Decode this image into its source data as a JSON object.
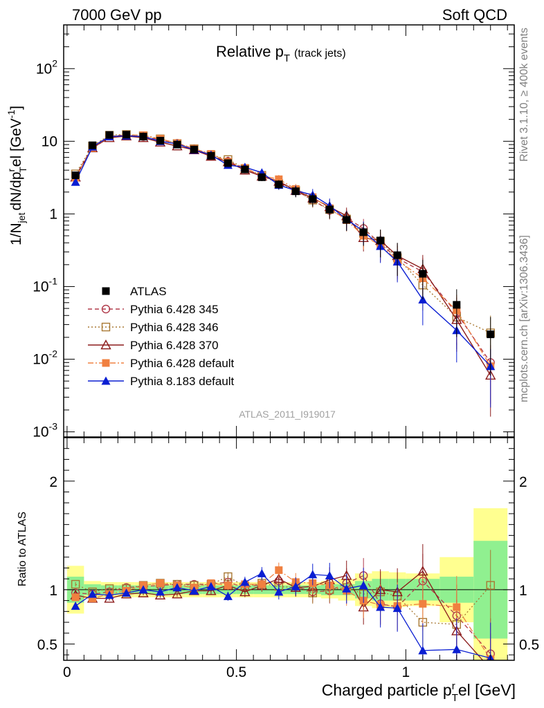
{
  "header": {
    "left": "7000 GeV pp",
    "right": "Soft QCD",
    "side_top": "Rivet 3.1.10, ≥ 400k events",
    "side_bottom": "mcplots.cern.ch [arXiv:1306.3436]"
  },
  "colors": {
    "ATLAS": "#000000",
    "Pythia 6.428 345": "#b03a4a",
    "Pythia 6.428 346": "#a87832",
    "Pythia 6.428 370": "#8b1a1a",
    "Pythia 6.428 default": "#f08040",
    "Pythia 8.183 default": "#0a1ed2",
    "band_inner": "#90f090",
    "band_outer": "#ffff90"
  },
  "chart_data": [
    {
      "panel": "main",
      "type": "scatter",
      "title": "Relative p",
      "title_sub": "T",
      "title_suffix": "(track jets)",
      "ylabel": "1/N",
      "ylabel_sub": "jet",
      "ylabel_mid": "dN/dp",
      "ylabel_sup": "r",
      "ylabel_sub2": "T",
      "ylabel_end": "el [GeV",
      "ylabel_sup2": "-1",
      "ylabel_close": "]",
      "yscale": "log",
      "xlim": [
        -0.01,
        1.32
      ],
      "ylim": [
        0.00085,
        400
      ],
      "yticks": [
        {
          "v": 0.001,
          "l": "10",
          "e": "-3"
        },
        {
          "v": 0.01,
          "l": "10",
          "e": "-2"
        },
        {
          "v": 0.1,
          "l": "10",
          "e": "-1"
        },
        {
          "v": 1,
          "l": "1",
          "e": ""
        },
        {
          "v": 10,
          "l": "10",
          "e": ""
        },
        {
          "v": 100,
          "l": "10",
          "e": "2"
        }
      ],
      "watermark": "ATLAS_2011_I919017",
      "legend_position": "lower-left",
      "x": [
        0.025,
        0.075,
        0.125,
        0.175,
        0.225,
        0.275,
        0.325,
        0.375,
        0.425,
        0.475,
        0.525,
        0.575,
        0.625,
        0.675,
        0.725,
        0.775,
        0.825,
        0.875,
        0.925,
        0.975,
        1.05,
        1.15,
        1.25
      ],
      "series": [
        {
          "name": "ATLAS",
          "marker": "square-filled",
          "line": "none",
          "values": [
            3.4,
            8.8,
            12.2,
            12.3,
            11.6,
            10.2,
            9.0,
            7.7,
            6.3,
            5.0,
            4.1,
            3.2,
            2.55,
            2.05,
            1.6,
            1.15,
            0.83,
            0.56,
            0.43,
            0.27,
            0.15,
            0.056,
            0.022
          ]
        },
        {
          "name": "Pythia 6.428 345",
          "marker": "circle-open",
          "line": "dashed",
          "values": [
            3.3,
            8.4,
            11.8,
            12.2,
            11.6,
            10.5,
            9.4,
            7.9,
            6.5,
            5.3,
            4.2,
            3.35,
            2.75,
            2.1,
            1.55,
            1.12,
            0.88,
            0.63,
            0.39,
            0.245,
            0.16,
            0.043,
            0.009
          ]
        },
        {
          "name": "Pythia 6.428 346",
          "marker": "square-open",
          "line": "dotted",
          "values": [
            3.55,
            8.6,
            12.1,
            12.4,
            11.9,
            10.8,
            9.3,
            7.9,
            6.5,
            5.6,
            4.2,
            3.4,
            2.6,
            2.1,
            1.55,
            1.15,
            0.85,
            0.54,
            0.42,
            0.25,
            0.105,
            0.038,
            0.023
          ]
        },
        {
          "name": "Pythia 6.428 370",
          "marker": "triangle-open",
          "line": "solid",
          "values": [
            3.2,
            8.1,
            11.2,
            11.8,
            11.2,
            9.7,
            8.6,
            7.6,
            6.2,
            5.2,
            4.0,
            3.3,
            2.8,
            2.1,
            1.65,
            1.25,
            0.94,
            0.47,
            0.43,
            0.265,
            0.175,
            0.035,
            0.006
          ]
        },
        {
          "name": "Pythia 6.428 default",
          "marker": "square-filled",
          "line": "dashdot",
          "values": [
            3.15,
            8.1,
            11.7,
            12.2,
            12.1,
            10.8,
            9.4,
            7.9,
            6.7,
            5.2,
            4.3,
            3.35,
            3.0,
            2.2,
            1.7,
            1.2,
            0.82,
            0.5,
            0.37,
            0.23,
            0.13,
            0.047,
            0.008
          ]
        },
        {
          "name": "Pythia 8.183 default",
          "marker": "triangle-filled",
          "line": "solid",
          "values": [
            2.75,
            8.4,
            11.6,
            11.9,
            11.6,
            10.0,
            9.2,
            7.6,
            6.5,
            4.7,
            4.4,
            3.7,
            2.5,
            2.1,
            1.82,
            1.3,
            0.84,
            0.58,
            0.36,
            0.22,
            0.066,
            0.025,
            0.008
          ]
        }
      ]
    },
    {
      "panel": "ratio",
      "type": "scatter",
      "xlabel": "Charged particle p",
      "xlabel_sub": "T",
      "xlabel_sup": "r",
      "xlabel_suffix": "el [GeV]",
      "ylabel": "Ratio to ATLAS",
      "xlim": [
        -0.01,
        1.32
      ],
      "ylim": [
        0.35,
        2.4
      ],
      "xticks": [
        {
          "v": 0,
          "l": "0"
        },
        {
          "v": 0.5,
          "l": "0.5"
        },
        {
          "v": 1,
          "l": "1"
        }
      ],
      "yticks": [
        {
          "v": 0.5,
          "l": "0.5"
        },
        {
          "v": 1,
          "l": "1"
        },
        {
          "v": 2,
          "l": "2"
        }
      ],
      "bin_edges": [
        0,
        0.05,
        0.1,
        0.15,
        0.2,
        0.25,
        0.3,
        0.35,
        0.4,
        0.45,
        0.5,
        0.55,
        0.6,
        0.65,
        0.7,
        0.75,
        0.8,
        0.85,
        0.9,
        0.95,
        1.0,
        1.1,
        1.2,
        1.3
      ],
      "band_inner": [
        0.12,
        0.05,
        0.04,
        0.04,
        0.04,
        0.04,
        0.04,
        0.04,
        0.04,
        0.04,
        0.04,
        0.04,
        0.04,
        0.04,
        0.04,
        0.05,
        0.05,
        0.08,
        0.1,
        0.1,
        0.1,
        0.12,
        0.45
      ],
      "band_outer": [
        0.22,
        0.08,
        0.07,
        0.07,
        0.07,
        0.07,
        0.07,
        0.07,
        0.07,
        0.07,
        0.07,
        0.07,
        0.07,
        0.07,
        0.07,
        0.08,
        0.1,
        0.15,
        0.17,
        0.16,
        0.15,
        0.3,
        0.75
      ],
      "series": [
        {
          "name": "Pythia 6.428 345",
          "values": [
            0.97,
            0.96,
            0.98,
            1.02,
            1.03,
            1.04,
            1.05,
            1.05,
            1.05,
            1.07,
            1.02,
            1.05,
            1.08,
            1.03,
            0.98,
            0.99,
            1.06,
            1.13,
            0.87,
            0.84,
            1.08,
            0.76,
            0.41
          ]
        },
        {
          "name": "Pythia 6.428 346",
          "values": [
            1.05,
            0.98,
            1.01,
            1.01,
            1.04,
            1.06,
            1.05,
            1.04,
            1.05,
            1.12,
            1.03,
            1.06,
            1.03,
            1.02,
            0.97,
            1.0,
            1.02,
            0.96,
            0.98,
            0.94,
            0.7,
            0.68,
            1.04
          ]
        },
        {
          "name": "Pythia 6.428 370",
          "values": [
            0.95,
            0.92,
            0.92,
            0.96,
            0.97,
            0.95,
            0.96,
            0.99,
            0.99,
            1.04,
            0.98,
            1.04,
            1.1,
            1.02,
            1.03,
            1.09,
            1.13,
            0.84,
            1.0,
            0.98,
            1.17,
            0.62,
            0.27
          ]
        },
        {
          "name": "Pythia 6.428 default",
          "values": [
            0.93,
            0.92,
            0.96,
            0.99,
            1.04,
            1.06,
            1.04,
            1.02,
            1.06,
            1.04,
            1.05,
            1.05,
            1.18,
            1.07,
            1.06,
            1.04,
            0.99,
            0.9,
            0.86,
            0.85,
            0.87,
            0.84,
            0.36
          ]
        },
        {
          "name": "Pythia 8.183 default",
          "values": [
            0.85,
            0.96,
            0.95,
            0.97,
            1.0,
            0.98,
            1.02,
            0.99,
            1.03,
            0.94,
            1.07,
            1.15,
            0.98,
            1.03,
            1.14,
            1.13,
            1.01,
            1.04,
            0.84,
            0.83,
            0.44,
            0.45,
            0.37
          ]
        }
      ]
    }
  ]
}
